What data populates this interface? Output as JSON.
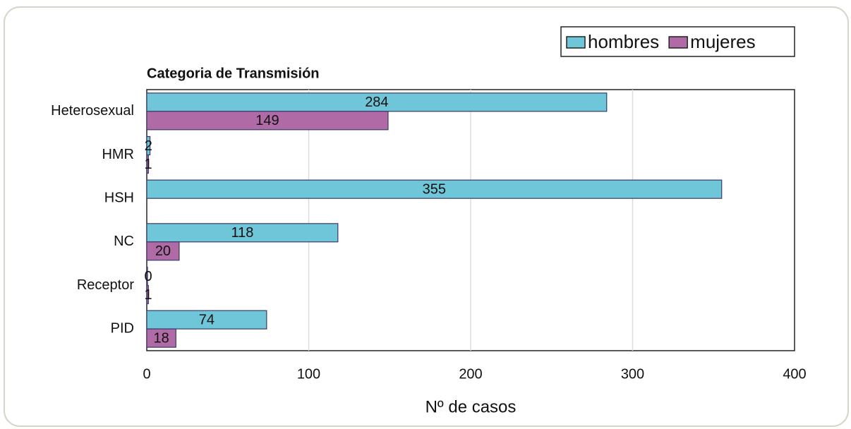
{
  "chart_data": {
    "type": "barh",
    "title": "Categoria de Transmisión",
    "xlabel": "Nº de casos",
    "categories": [
      "Heterosexual",
      "HMR",
      "HSH",
      "NC",
      "Receptor",
      "PID"
    ],
    "series": [
      {
        "name": "hombres",
        "color": "#6ec6d8",
        "values": [
          284,
          2,
          355,
          118,
          0,
          74
        ]
      },
      {
        "name": "mujeres",
        "color": "#b06ba6",
        "values": [
          149,
          1,
          null,
          20,
          1,
          18
        ]
      }
    ],
    "xlim": [
      0,
      400
    ],
    "xticks": [
      0,
      100,
      200,
      300,
      400
    ],
    "grid": true
  }
}
